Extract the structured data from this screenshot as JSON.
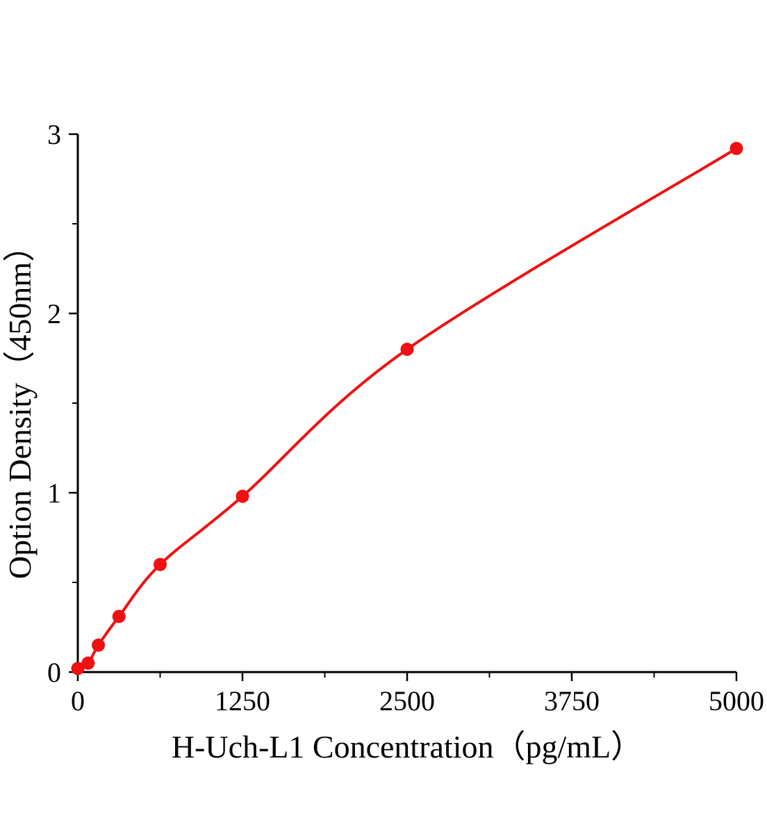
{
  "chart_data": {
    "type": "scatter",
    "title": "",
    "xlabel": "H-Uch-L1 Concentration（pg/mL）",
    "ylabel": "Option Density（450nm）",
    "x": [
      0,
      78,
      156,
      312.5,
      625,
      1250,
      2500,
      5000
    ],
    "y": [
      0.02,
      0.05,
      0.15,
      0.31,
      0.6,
      0.98,
      1.8,
      2.92
    ],
    "xlim": [
      0,
      5000
    ],
    "ylim": [
      0,
      3
    ],
    "x_major_ticks": [
      0,
      1250,
      2500,
      3750,
      5000
    ],
    "x_minor_ticks": [
      625,
      1875,
      3125,
      4375
    ],
    "y_major_ticks": [
      0,
      1,
      2,
      3
    ],
    "y_minor_ticks": [
      0.5,
      1.5,
      2.5
    ],
    "line_color": "#ee1111",
    "marker_color": "#ee1111",
    "axis_color": "#000000",
    "grid": false,
    "legend": null,
    "curve_style": "smooth",
    "marker_radius": 9.5
  }
}
